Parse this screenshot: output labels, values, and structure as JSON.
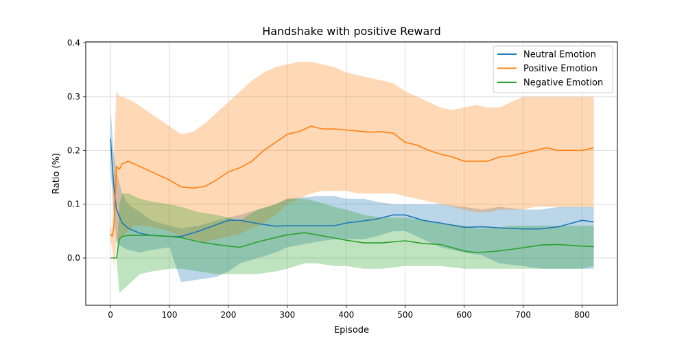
{
  "chart_data": {
    "type": "line",
    "title": "Handshake with positive Reward",
    "xlabel": "Episode",
    "ylabel": "Ratio (%)",
    "xlim": [
      -42,
      860
    ],
    "ylim": [
      -0.088,
      0.402
    ],
    "xticks": [
      0,
      100,
      200,
      300,
      400,
      500,
      600,
      700,
      800
    ],
    "yticks": [
      0.0,
      0.1,
      0.2,
      0.3,
      0.4
    ],
    "ytick_labels": [
      "0.0",
      "0.1",
      "0.2",
      "0.3",
      "0.4"
    ],
    "grid": true,
    "legend_position": "upper-right",
    "series": [
      {
        "name": "Neutral Emotion",
        "color": "#1f77b4",
        "x": [
          0,
          5,
          10,
          20,
          30,
          50,
          70,
          100,
          120,
          150,
          180,
          200,
          220,
          250,
          280,
          300,
          350,
          380,
          400,
          430,
          450,
          480,
          500,
          530,
          560,
          600,
          630,
          660,
          700,
          730,
          760,
          800,
          820
        ],
        "y": [
          0.222,
          0.14,
          0.09,
          0.065,
          0.055,
          0.046,
          0.042,
          0.04,
          0.04,
          0.05,
          0.062,
          0.07,
          0.07,
          0.064,
          0.059,
          0.06,
          0.06,
          0.06,
          0.065,
          0.069,
          0.072,
          0.08,
          0.08,
          0.07,
          0.065,
          0.057,
          0.058,
          0.056,
          0.054,
          0.054,
          0.058,
          0.07,
          0.067
        ],
        "upper": [
          0.28,
          0.2,
          0.16,
          0.12,
          0.1,
          0.085,
          0.07,
          0.06,
          0.055,
          0.06,
          0.07,
          0.075,
          0.08,
          0.09,
          0.1,
          0.11,
          0.115,
          0.115,
          0.11,
          0.11,
          0.105,
          0.1,
          0.1,
          0.1,
          0.1,
          0.095,
          0.09,
          0.095,
          0.09,
          0.09,
          0.095,
          0.095,
          0.095
        ],
        "lower": [
          0.17,
          0.09,
          0.03,
          0.02,
          0.015,
          0.01,
          0.015,
          0.02,
          -0.045,
          -0.04,
          -0.035,
          -0.025,
          -0.01,
          0.0,
          0.01,
          0.02,
          0.03,
          0.035,
          0.035,
          0.035,
          0.04,
          0.05,
          0.05,
          0.035,
          0.02,
          0.01,
          0.005,
          -0.01,
          -0.015,
          -0.02,
          -0.02,
          -0.02,
          -0.02
        ]
      },
      {
        "name": "Positive Emotion",
        "color": "#ff7f0e",
        "x": [
          0,
          3,
          6,
          10,
          15,
          20,
          30,
          40,
          60,
          80,
          100,
          120,
          140,
          160,
          180,
          200,
          220,
          240,
          260,
          280,
          300,
          320,
          340,
          360,
          380,
          400,
          420,
          440,
          460,
          480,
          500,
          520,
          540,
          560,
          580,
          600,
          620,
          640,
          660,
          680,
          700,
          720,
          740,
          760,
          780,
          800,
          820
        ],
        "y": [
          0.045,
          0.04,
          0.06,
          0.17,
          0.165,
          0.175,
          0.18,
          0.175,
          0.165,
          0.155,
          0.145,
          0.132,
          0.13,
          0.133,
          0.145,
          0.16,
          0.168,
          0.18,
          0.2,
          0.215,
          0.23,
          0.235,
          0.245,
          0.24,
          0.24,
          0.238,
          0.236,
          0.234,
          0.235,
          0.232,
          0.215,
          0.21,
          0.2,
          0.193,
          0.188,
          0.18,
          0.18,
          0.18,
          0.188,
          0.19,
          0.195,
          0.2,
          0.205,
          0.2,
          0.2,
          0.2,
          0.205
        ],
        "upper": [
          0.06,
          0.05,
          0.2,
          0.31,
          0.3,
          0.3,
          0.295,
          0.29,
          0.275,
          0.26,
          0.245,
          0.23,
          0.235,
          0.25,
          0.27,
          0.29,
          0.31,
          0.33,
          0.345,
          0.355,
          0.36,
          0.365,
          0.365,
          0.36,
          0.355,
          0.345,
          0.34,
          0.335,
          0.33,
          0.325,
          0.31,
          0.3,
          0.29,
          0.28,
          0.275,
          0.28,
          0.285,
          0.28,
          0.28,
          0.29,
          0.3,
          0.3,
          0.3,
          0.3,
          0.3,
          0.3,
          0.3
        ],
        "lower": [
          0.03,
          0.02,
          -0.02,
          0.03,
          0.035,
          0.04,
          0.05,
          0.06,
          0.06,
          0.055,
          0.05,
          0.04,
          0.035,
          0.03,
          0.035,
          0.04,
          0.045,
          0.055,
          0.065,
          0.08,
          0.1,
          0.11,
          0.12,
          0.125,
          0.125,
          0.125,
          0.12,
          0.12,
          0.12,
          0.12,
          0.115,
          0.11,
          0.105,
          0.1,
          0.095,
          0.09,
          0.085,
          0.085,
          0.09,
          0.09,
          0.09,
          0.095,
          0.095,
          0.095,
          0.095,
          0.095,
          0.095
        ]
      },
      {
        "name": "Negative Emotion",
        "color": "#2ca02c",
        "x": [
          0,
          5,
          10,
          15,
          20,
          30,
          50,
          70,
          100,
          120,
          150,
          180,
          200,
          220,
          250,
          280,
          300,
          330,
          350,
          380,
          400,
          430,
          460,
          500,
          530,
          560,
          600,
          620,
          650,
          680,
          700,
          730,
          760,
          800,
          820
        ],
        "y": [
          0.0,
          0.0,
          0.0,
          0.035,
          0.04,
          0.042,
          0.042,
          0.042,
          0.04,
          0.038,
          0.03,
          0.025,
          0.022,
          0.02,
          0.03,
          0.038,
          0.043,
          0.047,
          0.043,
          0.037,
          0.033,
          0.028,
          0.028,
          0.032,
          0.027,
          0.025,
          0.013,
          0.01,
          0.012,
          0.016,
          0.019,
          0.024,
          0.025,
          0.022,
          0.021
        ],
        "upper": [
          0.0,
          0.0,
          0.0,
          0.1,
          0.12,
          0.12,
          0.11,
          0.105,
          0.1,
          0.095,
          0.085,
          0.08,
          0.075,
          0.07,
          0.09,
          0.1,
          0.11,
          0.11,
          0.105,
          0.095,
          0.09,
          0.08,
          0.075,
          0.075,
          0.07,
          0.065,
          0.06,
          0.055,
          0.055,
          0.06,
          0.06,
          0.06,
          0.06,
          0.06,
          0.06
        ],
        "lower": [
          0.0,
          0.0,
          0.0,
          -0.065,
          -0.06,
          -0.05,
          -0.03,
          -0.025,
          -0.02,
          -0.02,
          -0.025,
          -0.03,
          -0.03,
          -0.03,
          -0.03,
          -0.025,
          -0.02,
          -0.01,
          -0.01,
          -0.015,
          -0.015,
          -0.02,
          -0.02,
          -0.015,
          -0.015,
          -0.015,
          -0.02,
          -0.02,
          -0.02,
          -0.02,
          -0.02,
          -0.02,
          -0.02,
          -0.02,
          -0.015
        ]
      }
    ]
  }
}
